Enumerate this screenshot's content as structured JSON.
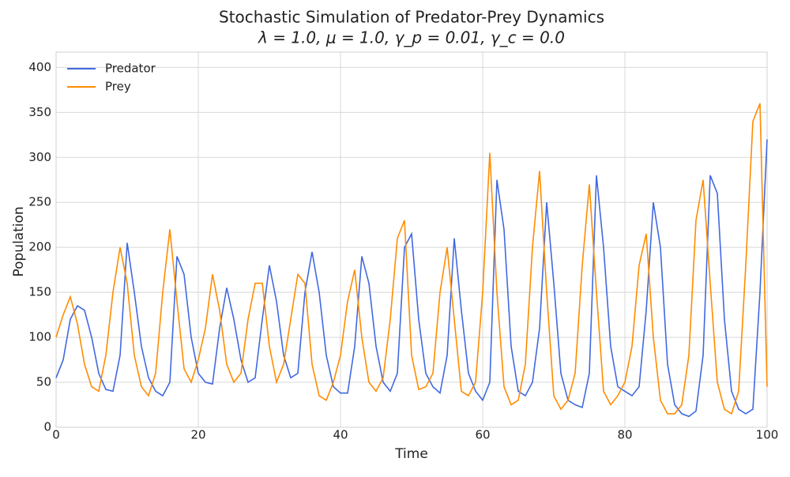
{
  "chart_data": {
    "type": "line",
    "title": "Stochastic Simulation of Predator-Prey Dynamics",
    "subtitle": "λ = 1.0, μ = 1.0, γ_p = 0.01, γ_c = 0.0",
    "x_label": "Time",
    "y_label": "Population",
    "x": [
      0,
      1,
      2,
      3,
      4,
      5,
      6,
      7,
      8,
      9,
      10,
      11,
      12,
      13,
      14,
      15,
      16,
      17,
      18,
      19,
      20,
      21,
      22,
      23,
      24,
      25,
      26,
      27,
      28,
      29,
      30,
      31,
      32,
      33,
      34,
      35,
      36,
      37,
      38,
      39,
      40,
      41,
      42,
      43,
      44,
      45,
      46,
      47,
      48,
      49,
      50,
      51,
      52,
      53,
      54,
      55,
      56,
      57,
      58,
      59,
      60,
      61,
      62,
      63,
      64,
      65,
      66,
      67,
      68,
      69,
      70,
      71,
      72,
      73,
      74,
      75,
      76,
      77,
      78,
      79,
      80,
      81,
      82,
      83,
      84,
      85,
      86,
      87,
      88,
      89,
      90,
      91,
      92,
      93,
      94,
      95,
      96,
      97,
      98,
      99,
      100
    ],
    "series": [
      {
        "name": "Predator",
        "color": "#4169e1",
        "values": [
          55,
          75,
          120,
          135,
          130,
          100,
          60,
          42,
          40,
          80,
          205,
          150,
          90,
          55,
          40,
          35,
          50,
          190,
          170,
          100,
          60,
          50,
          48,
          110,
          155,
          120,
          75,
          50,
          55,
          120,
          180,
          140,
          80,
          55,
          60,
          150,
          195,
          150,
          80,
          45,
          38,
          38,
          90,
          190,
          160,
          90,
          50,
          40,
          60,
          200,
          215,
          120,
          60,
          45,
          38,
          80,
          210,
          130,
          60,
          40,
          30,
          50,
          275,
          220,
          90,
          40,
          35,
          50,
          110,
          250,
          160,
          60,
          30,
          25,
          22,
          60,
          280,
          200,
          90,
          45,
          40,
          35,
          45,
          130,
          250,
          200,
          70,
          25,
          15,
          12,
          18,
          80,
          280,
          260,
          120,
          40,
          20,
          15,
          20,
          150,
          320
        ]
      },
      {
        "name": "Prey",
        "color": "#ff8c00",
        "values": [
          100,
          125,
          145,
          115,
          70,
          45,
          40,
          80,
          150,
          200,
          160,
          80,
          45,
          35,
          60,
          150,
          220,
          140,
          65,
          50,
          75,
          110,
          170,
          130,
          70,
          50,
          60,
          120,
          160,
          160,
          90,
          50,
          70,
          120,
          170,
          160,
          70,
          35,
          30,
          50,
          80,
          140,
          175,
          100,
          50,
          40,
          55,
          120,
          210,
          230,
          80,
          42,
          45,
          60,
          150,
          200,
          120,
          40,
          35,
          50,
          150,
          305,
          150,
          45,
          25,
          30,
          70,
          200,
          285,
          150,
          35,
          20,
          30,
          60,
          180,
          270,
          150,
          40,
          25,
          35,
          50,
          90,
          180,
          215,
          100,
          30,
          15,
          15,
          25,
          80,
          230,
          275,
          160,
          50,
          20,
          15,
          40,
          180,
          340,
          360,
          45
        ]
      }
    ],
    "xlim": [
      0,
      100
    ],
    "ylim": [
      0,
      417
    ],
    "xticks": [
      0,
      20,
      40,
      60,
      80,
      100
    ],
    "yticks": [
      0,
      50,
      100,
      150,
      200,
      250,
      300,
      350,
      400
    ],
    "grid": true,
    "legend": "upper left"
  }
}
